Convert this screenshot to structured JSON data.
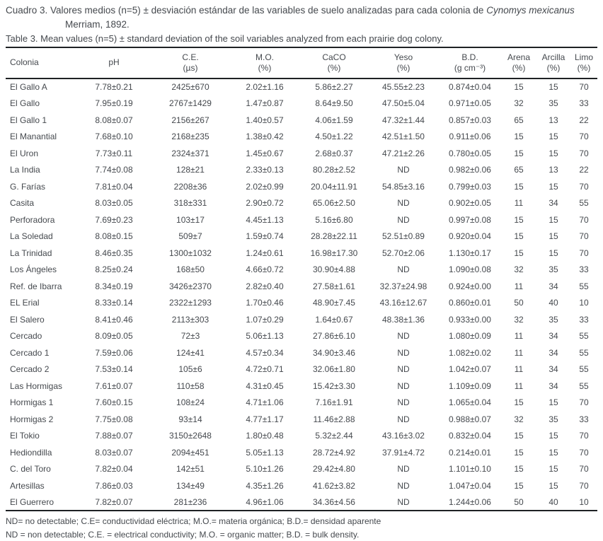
{
  "caption": {
    "es_part1": "Cuadro 3. Valores medios (n=5) ± desviación estándar de las variables de suelo analizadas para cada colonia de ",
    "es_species": "Cynomys mexicanus",
    "es_line2": "Merriam, 1892.",
    "en": "Table 3. Mean values (n=5) ± standard deviation of the soil variables analyzed from each prairie dog colony."
  },
  "table": {
    "columns": [
      {
        "label": "Colonia",
        "unit": ""
      },
      {
        "label": "pH",
        "unit": ""
      },
      {
        "label": "C.E.",
        "unit": "(µs)"
      },
      {
        "label": "M.O.",
        "unit": "(%)"
      },
      {
        "label": "CaCO",
        "unit": "(%)"
      },
      {
        "label": "Yeso",
        "unit": "(%)"
      },
      {
        "label": "B.D.",
        "unit": "(g cm⁻³)"
      },
      {
        "label": "Arena",
        "unit": "(%)"
      },
      {
        "label": "Arcilla",
        "unit": "(%)"
      },
      {
        "label": "Limo",
        "unit": "(%)"
      }
    ],
    "rows": [
      [
        "El Gallo A",
        "7.78±0.21",
        "2425±670",
        "2.02±1.16",
        "5.86±2.27",
        "45.55±2.23",
        "0.874±0.04",
        "15",
        "15",
        "70"
      ],
      [
        "El Gallo",
        "7.95±0.19",
        "2767±1429",
        "1.47±0.87",
        "8.64±9.50",
        "47.50±5.04",
        "0.971±0.05",
        "32",
        "35",
        "33"
      ],
      [
        "El Gallo 1",
        "8.08±0.07",
        "2156±267",
        "1.40±0.57",
        "4.06±1.59",
        "47.32±1.44",
        "0.857±0.03",
        "65",
        "13",
        "22"
      ],
      [
        "El Manantial",
        "7.68±0.10",
        "2168±235",
        "1.38±0.42",
        "4.50±1.22",
        "42.51±1.50",
        "0.911±0.06",
        "15",
        "15",
        "70"
      ],
      [
        "El Uron",
        "7.73±0.11",
        "2324±371",
        "1.45±0.67",
        "2.68±0.37",
        "47.21±2.26",
        "0.780±0.05",
        "15",
        "15",
        "70"
      ],
      [
        "La India",
        "7.74±0.08",
        "128±21",
        "2.33±0.13",
        "80.28±2.52",
        "ND",
        "0.982±0.06",
        "65",
        "13",
        "22"
      ],
      [
        "G. Farías",
        "7.81±0.04",
        "2208±36",
        "2.02±0.99",
        "20.04±11.91",
        "54.85±3.16",
        "0.799±0.03",
        "15",
        "15",
        "70"
      ],
      [
        "Casita",
        "8.03±0.05",
        "318±331",
        "2.90±0.72",
        "65.06±2.50",
        "ND",
        "0.902±0.05",
        "11",
        "34",
        "55"
      ],
      [
        "Perforadora",
        "7.69±0.23",
        "103±17",
        "4.45±1.13",
        "5.16±6.80",
        "ND",
        "0.997±0.08",
        "15",
        "15",
        "70"
      ],
      [
        "La Soledad",
        "8.08±0.15",
        "509±7",
        "1.59±0.74",
        "28.28±22.11",
        "52.51±0.89",
        "0.920±0.04",
        "15",
        "15",
        "70"
      ],
      [
        "La Trinidad",
        "8.46±0.35",
        "1300±1032",
        "1.24±0.61",
        "16.98±17.30",
        "52.70±2.06",
        "1.130±0.17",
        "15",
        "15",
        "70"
      ],
      [
        "Los Ángeles",
        "8.25±0.24",
        "168±50",
        "4.66±0.72",
        "30.90±4.88",
        "ND",
        "1.090±0.08",
        "32",
        "35",
        "33"
      ],
      [
        "Ref. de Ibarra",
        "8.34±0.19",
        "3426±2370",
        "2.82±0.40",
        "27.58±1.61",
        "32.37±24.98",
        "0.924±0.00",
        "11",
        "34",
        "55"
      ],
      [
        "EL Erial",
        "8.33±0.14",
        "2322±1293",
        "1.70±0.46",
        "48.90±7.45",
        "43.16±12.67",
        "0.860±0.01",
        "50",
        "40",
        "10"
      ],
      [
        "El Salero",
        "8.41±0.46",
        "2113±303",
        "1.07±0.29",
        "1.64±0.67",
        "48.38±1.36",
        "0.933±0.00",
        "32",
        "35",
        "33"
      ],
      [
        "Cercado",
        "8.09±0.05",
        "72±3",
        "5.06±1.13",
        "27.86±6.10",
        "ND",
        "1.080±0.09",
        "11",
        "34",
        "55"
      ],
      [
        "Cercado 1",
        "7.59±0.06",
        "124±41",
        "4.57±0.34",
        "34.90±3.46",
        "ND",
        "1.082±0.02",
        "11",
        "34",
        "55"
      ],
      [
        "Cercado 2",
        "7.53±0.14",
        "105±6",
        "4.72±0.71",
        "32.06±1.80",
        "ND",
        "1.042±0.07",
        "11",
        "34",
        "55"
      ],
      [
        "Las Hormigas",
        "7.61±0.07",
        "110±58",
        "4.31±0.45",
        "15.42±3.30",
        "ND",
        "1.109±0.09",
        "11",
        "34",
        "55"
      ],
      [
        "Hormigas 1",
        "7.60±0.15",
        "108±24",
        "4.71±1.06",
        "7.16±1.91",
        "ND",
        "1.065±0.04",
        "15",
        "15",
        "70"
      ],
      [
        "Hormigas 2",
        "7.75±0.08",
        "93±14",
        "4.77±1.17",
        "11.46±2.88",
        "ND",
        "0.988±0.07",
        "32",
        "35",
        "33"
      ],
      [
        "El Tokio",
        "7.88±0.07",
        "3150±2648",
        "1.80±0.48",
        "5.32±2.44",
        "43.16±3.02",
        "0.832±0.04",
        "15",
        "15",
        "70"
      ],
      [
        "Hediondilla",
        "8.03±0.07",
        "2094±451",
        "5.05±1.13",
        "28.72±4.92",
        "37.91±4.72",
        "0.214±0.01",
        "15",
        "15",
        "70"
      ],
      [
        "C. del Toro",
        "7.82±0.04",
        "142±51",
        "5.10±1.26",
        "29.42±4.80",
        "ND",
        "1.101±0.10",
        "15",
        "15",
        "70"
      ],
      [
        "Artesillas",
        "7.86±0.03",
        "134±49",
        "4.35±1.26",
        "41.62±3.82",
        "ND",
        "1.047±0.04",
        "15",
        "15",
        "70"
      ],
      [
        "El Guerrero",
        "7.82±0.07",
        "281±236",
        "4.96±1.06",
        "34.36±4.56",
        "ND",
        "1.244±0.06",
        "50",
        "40",
        "10"
      ]
    ]
  },
  "footnotes": {
    "es": "ND= no detectable; C.E= conductividad eléctrica; M.O.= materia orgánica; B.D.= densidad aparente",
    "en": "ND = non detectable; C.E. = electrical conductivity; M.O. = organic matter; B.D. = bulk density."
  }
}
